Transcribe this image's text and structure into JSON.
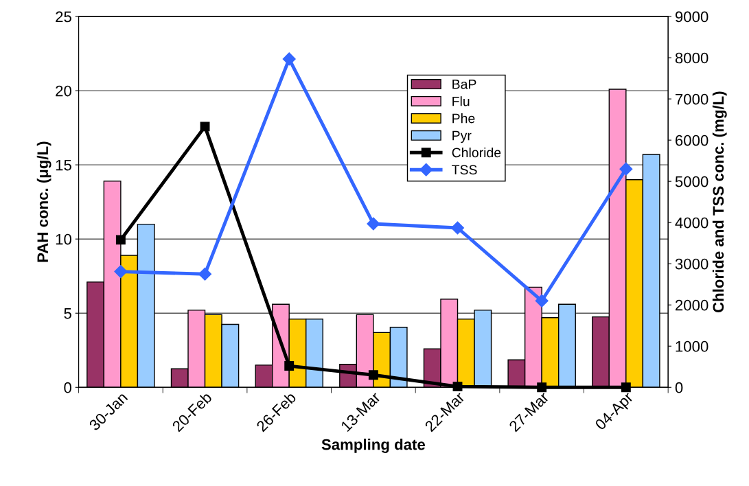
{
  "chart_data": {
    "type": "bar",
    "xlabel": "Sampling date",
    "ylabel": "PAH conc. (μg/L)",
    "y2label": "Chloride and TSS conc. (mg/L)",
    "categories": [
      "30-Jan",
      "20-Feb",
      "26-Feb",
      "13-Mar",
      "22-Mar",
      "27-Mar",
      "04-Apr"
    ],
    "series": [
      {
        "name": "BaP",
        "color": "#993366",
        "values": [
          7.1,
          1.25,
          1.5,
          1.55,
          2.6,
          1.85,
          4.75
        ]
      },
      {
        "name": "Flu",
        "color": "#ff99cc",
        "values": [
          13.9,
          5.2,
          5.6,
          4.9,
          5.95,
          6.75,
          20.1
        ]
      },
      {
        "name": "Phe",
        "color": "#ffcc00",
        "values": [
          8.9,
          4.9,
          4.6,
          3.7,
          4.6,
          4.7,
          14.0
        ]
      },
      {
        "name": "Pyr",
        "color": "#99ccff",
        "values": [
          11.0,
          4.25,
          4.6,
          4.05,
          5.2,
          5.6,
          15.7
        ]
      },
      {
        "name": "Chloride",
        "color": "#000000",
        "type": "line",
        "axis": "y2",
        "marker": "square",
        "values": [
          3580,
          6330,
          520,
          300,
          20,
          0,
          0
        ]
      },
      {
        "name": "TSS",
        "color": "#3366ff",
        "type": "line",
        "axis": "y2",
        "marker": "diamond",
        "values": [
          2810,
          2750,
          7970,
          3970,
          3870,
          2100,
          5300
        ]
      }
    ],
    "ylim": [
      0,
      25
    ],
    "yticks": [
      0,
      5,
      10,
      15,
      20,
      25
    ],
    "y2lim": [
      0,
      9000
    ],
    "y2ticks": [
      0,
      1000,
      2000,
      3000,
      4000,
      5000,
      6000,
      7000,
      8000,
      9000
    ],
    "grid": "y",
    "legend": "top right"
  }
}
